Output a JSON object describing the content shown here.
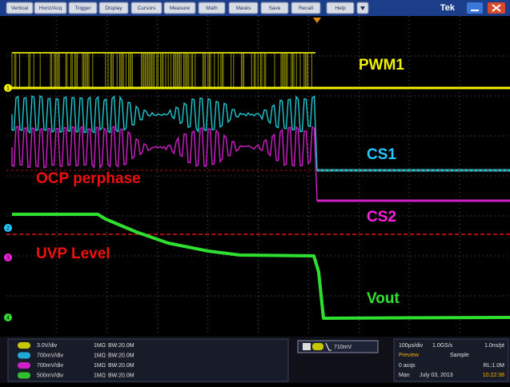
{
  "menu": [
    "Vertical",
    "Horiz/Acq",
    "Trigger",
    "Display",
    "Cursors",
    "Measure",
    "Math",
    "Masks",
    "Save",
    "Recall",
    "Help"
  ],
  "brand": "Tek",
  "labels": {
    "pwm1": "PWM1",
    "cs1": "CS1",
    "ocp": "OCP perphase",
    "cs2": "CS2",
    "uvp": "UVP Level",
    "vout": "Vout"
  },
  "markers": [
    "1",
    "2",
    "3",
    "4"
  ],
  "channels": [
    {
      "scale": "3.0V/div",
      "impedance": "1MΩ",
      "bandwidth": "BW:20.0M"
    },
    {
      "scale": "700mV/div",
      "impedance": "1MΩ",
      "bandwidth": "BW:20.0M"
    },
    {
      "scale": "700mV/div",
      "impedance": "1MΩ",
      "bandwidth": "BW:20.0M"
    },
    {
      "scale": "500mV/div",
      "impedance": "1MΩ",
      "bandwidth": "BW:20.0M"
    }
  ],
  "trigger": {
    "level": "710mV"
  },
  "acquisition": {
    "timebase": "100µs/div",
    "sample_rate": "1.0GS/s",
    "resolution": "1.0ns/pt",
    "mode": "Preview",
    "acq_mode": "Sample",
    "acqs": "0 acqs",
    "record_length": "RL:1.0M",
    "trigger_mode": "Man",
    "date": "July 03, 2013",
    "time": "10:22:38"
  }
}
